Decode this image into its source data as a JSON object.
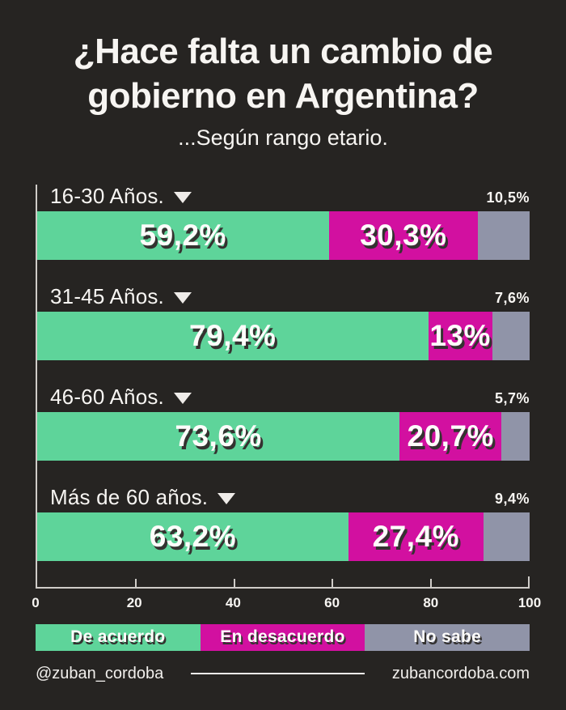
{
  "header": {
    "title_line1": "¿Hace falta un cambio de",
    "title_line2": "gobierno en Argentina?",
    "subtitle": "...Según rango etario."
  },
  "chart_data": {
    "type": "bar",
    "orientation": "horizontal-stacked",
    "title": "¿Hace falta un cambio de gobierno en Argentina?",
    "subtitle": "...Según rango etario.",
    "categories": [
      "16-30 Años.",
      "31-45 Años.",
      "46-60 Años.",
      "Más de 60 años."
    ],
    "series": [
      {
        "name": "De acuerdo",
        "color": "#5ed49a",
        "values": [
          59.2,
          79.4,
          73.6,
          63.2
        ]
      },
      {
        "name": "En desacuerdo",
        "color": "#d210a0",
        "values": [
          30.3,
          13,
          20.7,
          27.4
        ]
      },
      {
        "name": "No sabe",
        "color": "#9094a8",
        "values": [
          10.5,
          7.6,
          5.7,
          9.4
        ]
      }
    ],
    "xlim": [
      0,
      100
    ],
    "ticks": [
      "0",
      "20",
      "40",
      "60",
      "80",
      "100"
    ],
    "legend": [
      "De acuerdo",
      "En desacuerdo",
      "No sabe"
    ],
    "groups": [
      {
        "label": "16-30 Años.",
        "values": {
          "agree": 59.2,
          "disagree": 30.3,
          "unknown": 10.5
        },
        "labels": {
          "agree": "59,2%",
          "disagree": "30,3%",
          "unknown": "10,5%"
        }
      },
      {
        "label": "31-45 Años.",
        "values": {
          "agree": 79.4,
          "disagree": 13,
          "unknown": 7.6
        },
        "labels": {
          "agree": "79,4%",
          "disagree": "13%",
          "unknown": "7,6%"
        }
      },
      {
        "label": "46-60 Años.",
        "values": {
          "agree": 73.6,
          "disagree": 20.7,
          "unknown": 5.7
        },
        "labels": {
          "agree": "73,6%",
          "disagree": "20,7%",
          "unknown": "5,7%"
        }
      },
      {
        "label": "Más de 60 años.",
        "values": {
          "agree": 63.2,
          "disagree": 27.4,
          "unknown": 9.4
        },
        "labels": {
          "agree": "63,2%",
          "disagree": "27,4%",
          "unknown": "9,4%"
        }
      }
    ],
    "colors": {
      "agree": "#5ed49a",
      "disagree": "#d210a0",
      "unknown": "#9094a8",
      "background": "#262422",
      "text": "#f7f5f2",
      "axis": "#cfccc8"
    }
  },
  "footer": {
    "handle": "@zuban_cordoba",
    "site": "zubancordoba.com"
  }
}
